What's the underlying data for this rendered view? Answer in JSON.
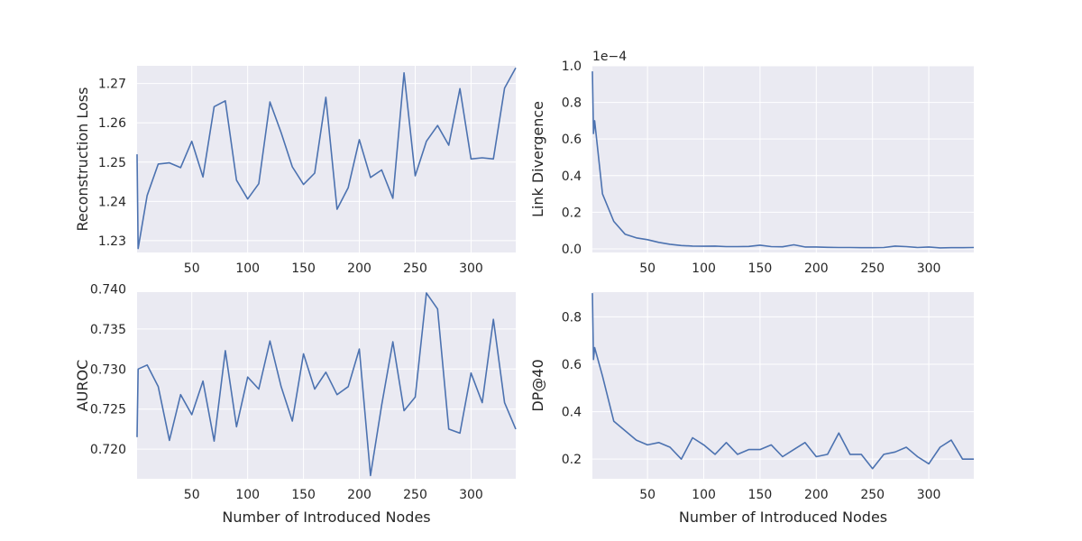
{
  "colors": {
    "panel_background": "#eaeaf2",
    "grid": "#ffffff",
    "series": "#4c72b0",
    "text": "#262626"
  },
  "chart_data": [
    {
      "type": "line",
      "title": "",
      "xlabel": "",
      "ylabel": "Reconstruction Loss",
      "xlim": [
        1,
        340
      ],
      "ylim": [
        1.227,
        1.2745
      ],
      "xticks": [
        50,
        100,
        150,
        200,
        250,
        300
      ],
      "yticks": [
        1.23,
        1.24,
        1.25,
        1.26,
        1.27
      ],
      "ytick_labels": [
        "1.23",
        "1.24",
        "1.25",
        "1.26",
        "1.27"
      ],
      "grid": true,
      "series": [
        {
          "x": [
            1,
            2,
            10,
            20,
            30,
            40,
            50,
            60,
            70,
            80,
            90,
            100,
            110,
            120,
            130,
            140,
            150,
            160,
            170,
            180,
            190,
            200,
            210,
            220,
            230,
            240,
            250,
            260,
            270,
            280,
            290,
            300,
            310,
            320,
            330,
            340
          ],
          "values": [
            1.252,
            1.228,
            1.2415,
            1.2495,
            1.2498,
            1.2486,
            1.2553,
            1.2462,
            1.2641,
            1.2656,
            1.2454,
            1.2406,
            1.2445,
            1.2653,
            1.2575,
            1.2488,
            1.2443,
            1.2472,
            1.2665,
            1.238,
            1.2435,
            1.2557,
            1.2461,
            1.248,
            1.2408,
            1.2727,
            1.2465,
            1.2553,
            1.2593,
            1.2543,
            1.2687,
            1.2508,
            1.2511,
            1.2508,
            1.2688,
            1.274
          ]
        }
      ]
    },
    {
      "type": "line",
      "title": "",
      "xlabel": "",
      "ylabel": "Link Divergence",
      "scale_label": "1e−4",
      "xlim": [
        1,
        340
      ],
      "ylim": [
        -0.02,
        1.0
      ],
      "xticks": [
        50,
        100,
        150,
        200,
        250,
        300
      ],
      "yticks": [
        0.0,
        0.2,
        0.4,
        0.6,
        0.8,
        1.0
      ],
      "ytick_labels": [
        "0.0",
        "0.2",
        "0.4",
        "0.6",
        "0.8",
        "1.0"
      ],
      "grid": true,
      "series": [
        {
          "x": [
            1,
            2,
            3,
            10,
            20,
            30,
            40,
            50,
            60,
            70,
            80,
            90,
            100,
            110,
            120,
            130,
            140,
            150,
            160,
            170,
            180,
            190,
            200,
            210,
            220,
            230,
            240,
            250,
            260,
            270,
            280,
            290,
            300,
            310,
            320,
            330,
            340
          ],
          "values": [
            0.97,
            0.63,
            0.7,
            0.3,
            0.15,
            0.08,
            0.06,
            0.05,
            0.035,
            0.025,
            0.018,
            0.015,
            0.014,
            0.015,
            0.012,
            0.012,
            0.013,
            0.02,
            0.012,
            0.011,
            0.022,
            0.01,
            0.01,
            0.008,
            0.007,
            0.007,
            0.006,
            0.006,
            0.007,
            0.015,
            0.012,
            0.007,
            0.01,
            0.005,
            0.006,
            0.006,
            0.007
          ]
        }
      ]
    },
    {
      "type": "line",
      "title": "",
      "xlabel": "Number of Introduced Nodes",
      "ylabel": "AUROC",
      "xlim": [
        1,
        340
      ],
      "ylim": [
        0.7163,
        0.7396
      ],
      "xticks": [
        50,
        100,
        150,
        200,
        250,
        300
      ],
      "yticks": [
        0.72,
        0.725,
        0.73,
        0.735,
        0.74
      ],
      "ytick_labels": [
        "0.720",
        "0.725",
        "0.730",
        "0.735",
        "0.740"
      ],
      "grid": true,
      "series": [
        {
          "x": [
            1,
            2,
            10,
            20,
            30,
            40,
            50,
            60,
            70,
            80,
            90,
            100,
            110,
            120,
            130,
            140,
            150,
            160,
            170,
            180,
            190,
            200,
            210,
            220,
            230,
            240,
            250,
            260,
            270,
            280,
            290,
            300,
            310,
            320,
            330,
            340
          ],
          "values": [
            0.7215,
            0.73,
            0.7305,
            0.7278,
            0.7211,
            0.7268,
            0.7243,
            0.7285,
            0.721,
            0.7323,
            0.7228,
            0.729,
            0.7275,
            0.7335,
            0.7278,
            0.7235,
            0.7319,
            0.7275,
            0.7296,
            0.7268,
            0.7278,
            0.7325,
            0.7167,
            0.7255,
            0.7334,
            0.7248,
            0.7265,
            0.7395,
            0.7375,
            0.7225,
            0.722,
            0.7295,
            0.7258,
            0.7362,
            0.7258,
            0.7225
          ]
        }
      ]
    },
    {
      "type": "line",
      "title": "",
      "xlabel": "Number of Introduced Nodes",
      "ylabel": "DP@40",
      "xlim": [
        1,
        340
      ],
      "ylim": [
        0.117,
        0.904
      ],
      "xticks": [
        50,
        100,
        150,
        200,
        250,
        300
      ],
      "yticks": [
        0.2,
        0.4,
        0.6,
        0.8
      ],
      "ytick_labels": [
        "0.2",
        "0.4",
        "0.6",
        "0.8"
      ],
      "grid": true,
      "series": [
        {
          "x": [
            1,
            2,
            3,
            10,
            20,
            30,
            40,
            50,
            60,
            70,
            80,
            90,
            100,
            110,
            120,
            130,
            140,
            150,
            160,
            170,
            180,
            190,
            200,
            210,
            220,
            230,
            240,
            250,
            260,
            270,
            280,
            290,
            300,
            310,
            320,
            330,
            340
          ],
          "values": [
            0.9,
            0.62,
            0.67,
            0.55,
            0.36,
            0.32,
            0.28,
            0.26,
            0.27,
            0.25,
            0.2,
            0.29,
            0.26,
            0.22,
            0.27,
            0.22,
            0.24,
            0.24,
            0.26,
            0.21,
            0.24,
            0.27,
            0.21,
            0.22,
            0.31,
            0.22,
            0.22,
            0.16,
            0.22,
            0.23,
            0.25,
            0.21,
            0.18,
            0.25,
            0.28,
            0.2,
            0.2
          ]
        }
      ]
    }
  ]
}
